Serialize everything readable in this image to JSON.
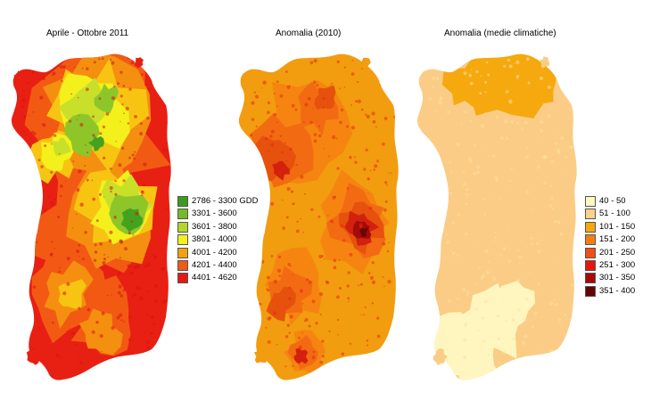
{
  "maps": [
    {
      "title": "Aprile - Ottobre 2011",
      "colors": {
        "base": "#e81f13",
        "layers": [
          "#f25a14",
          "#f48f10",
          "#f7c412",
          "#f3f01c",
          "#c8e02a",
          "#8ec62a",
          "#45a21f"
        ],
        "speckle": "#d7120e"
      }
    },
    {
      "title": "Anomalia (2010)",
      "colors": {
        "base": "#f29c0f",
        "layers": [
          "#f58510",
          "#f26b12",
          "#e6510e",
          "#d3210d",
          "#a30c07",
          "#6e0404"
        ],
        "speckle": "#e6290d"
      }
    },
    {
      "title": "Anomalia (medie climatiche)",
      "colors": {
        "base": "#fbcc85",
        "north": "#f5a90f",
        "south": "#fff6bf",
        "speckle": "#fbe0a3"
      }
    }
  ],
  "legend_gdd": [
    {
      "label": "2786 - 3300 GDD",
      "color": "#3a9c1c"
    },
    {
      "label": "3301 - 3600",
      "color": "#74bb24"
    },
    {
      "label": "3601 - 3800",
      "color": "#b2d62c"
    },
    {
      "label": "3801 - 4000",
      "color": "#f5f01c"
    },
    {
      "label": "4001 - 4200",
      "color": "#f3a10f"
    },
    {
      "label": "4201 - 4400",
      "color": "#f05a15"
    },
    {
      "label": "4401 - 4620",
      "color": "#e31a13"
    }
  ],
  "legend_anomaly": [
    {
      "label": "40 - 50",
      "color": "#fff8c0"
    },
    {
      "label": "51 - 100",
      "color": "#fcd18a"
    },
    {
      "label": "101 - 150",
      "color": "#f5a90f"
    },
    {
      "label": "151 - 200",
      "color": "#f57e11"
    },
    {
      "label": "201 - 250",
      "color": "#ef4f12"
    },
    {
      "label": "251 - 300",
      "color": "#e9150c"
    },
    {
      "label": "301 - 350",
      "color": "#a80b07"
    },
    {
      "label": "351 - 400",
      "color": "#650404"
    }
  ]
}
